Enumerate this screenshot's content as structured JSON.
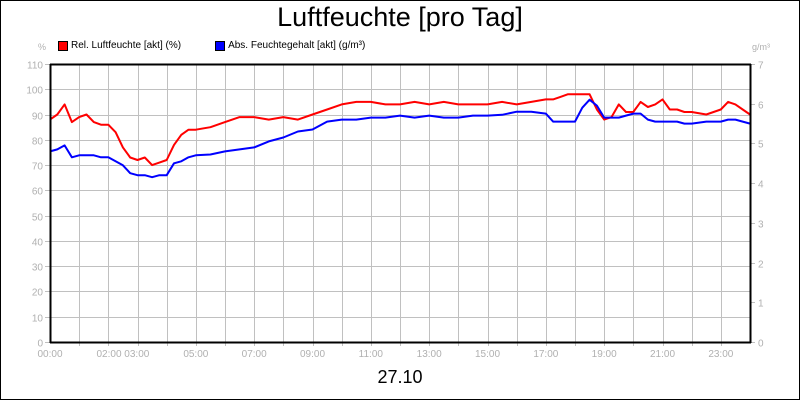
{
  "chart_data": {
    "type": "line",
    "title": "Luftfeuchte [pro Tag]",
    "xlabel": "27.10",
    "ylabel_left": "%",
    "ylabel_right": "g/m³",
    "ylim_left": [
      0,
      110
    ],
    "ylim_right": [
      0,
      7
    ],
    "grid": true,
    "legend_position": "top-left",
    "yticks_left": [
      "0",
      "10",
      "20",
      "30",
      "40",
      "50",
      "60",
      "70",
      "80",
      "90",
      "100",
      "110"
    ],
    "yticks_right": [
      "0",
      "1",
      "2",
      "3",
      "4",
      "5",
      "6",
      "7"
    ],
    "xtick_labels": [
      {
        "label": "00:00",
        "hour": 0
      },
      {
        "label": "02:00 03:00",
        "hour": 2.5
      },
      {
        "label": "05:00",
        "hour": 5
      },
      {
        "label": "07:00",
        "hour": 7
      },
      {
        "label": "09:00",
        "hour": 9
      },
      {
        "label": "11:00",
        "hour": 11
      },
      {
        "label": "13:00",
        "hour": 13
      },
      {
        "label": "15:00",
        "hour": 15
      },
      {
        "label": "17:00",
        "hour": 17
      },
      {
        "label": "19:00",
        "hour": 19
      },
      {
        "label": "21:00",
        "hour": 21
      },
      {
        "label": "23:00",
        "hour": 23
      }
    ],
    "x_hours": [
      0,
      0.25,
      0.5,
      0.75,
      1,
      1.25,
      1.5,
      1.75,
      2,
      2.25,
      2.5,
      2.75,
      3,
      3.25,
      3.5,
      3.75,
      4,
      4.25,
      4.5,
      4.75,
      5,
      5.5,
      6,
      6.5,
      7,
      7.5,
      8,
      8.5,
      9,
      9.5,
      10,
      10.5,
      11,
      11.5,
      12,
      12.5,
      13,
      13.5,
      14,
      14.5,
      15,
      15.5,
      16,
      16.5,
      17,
      17.25,
      17.5,
      17.75,
      18,
      18.25,
      18.5,
      18.75,
      19,
      19.25,
      19.5,
      19.75,
      20,
      20.25,
      20.5,
      20.75,
      21,
      21.25,
      21.5,
      21.75,
      22,
      22.5,
      23,
      23.25,
      23.5,
      23.75,
      24
    ],
    "series": [
      {
        "name": "Rel. Luftfeuchte [akt] (%)",
        "axis": "left",
        "color": "#ff0000",
        "values": [
          88,
          90,
          94,
          87,
          89,
          90,
          87,
          86,
          86,
          83,
          77,
          73,
          72,
          73,
          70,
          71,
          72,
          78,
          82,
          84,
          84,
          85,
          87,
          89,
          89,
          88,
          89,
          88,
          90,
          92,
          94,
          95,
          95,
          94,
          94,
          95,
          94,
          95,
          94,
          94,
          94,
          95,
          94,
          95,
          96,
          96,
          97,
          98,
          98,
          98,
          98,
          92,
          88,
          89,
          94,
          91,
          91,
          95,
          93,
          94,
          96,
          92,
          92,
          91,
          91,
          90,
          92,
          95,
          94,
          92,
          90
        ]
      },
      {
        "name": "Abs. Feuchtegehalt [akt] (g/m³)",
        "axis": "right",
        "color": "#0000ff",
        "values": [
          4.8,
          4.85,
          4.95,
          4.65,
          4.7,
          4.7,
          4.7,
          4.65,
          4.65,
          4.55,
          4.45,
          4.25,
          4.2,
          4.2,
          4.15,
          4.2,
          4.2,
          4.5,
          4.55,
          4.65,
          4.7,
          4.72,
          4.8,
          4.85,
          4.9,
          5.05,
          5.15,
          5.3,
          5.35,
          5.55,
          5.6,
          5.6,
          5.65,
          5.65,
          5.7,
          5.65,
          5.7,
          5.65,
          5.65,
          5.7,
          5.7,
          5.72,
          5.8,
          5.8,
          5.75,
          5.55,
          5.55,
          5.55,
          5.55,
          5.9,
          6.1,
          5.95,
          5.65,
          5.65,
          5.65,
          5.7,
          5.75,
          5.75,
          5.6,
          5.55,
          5.55,
          5.55,
          5.55,
          5.5,
          5.5,
          5.55,
          5.55,
          5.6,
          5.6,
          5.55,
          5.5
        ]
      }
    ]
  },
  "legend": {
    "items": [
      {
        "label": "Rel. Luftfeuchte [akt] (%)",
        "color": "#ff0000"
      },
      {
        "label": "Abs. Feuchtegehalt [akt] (g/m³)",
        "color": "#0000ff"
      }
    ]
  },
  "colors": {
    "grid": "#c0c0c0",
    "axis": "#000000",
    "tick_text": "#b0b0b0"
  }
}
